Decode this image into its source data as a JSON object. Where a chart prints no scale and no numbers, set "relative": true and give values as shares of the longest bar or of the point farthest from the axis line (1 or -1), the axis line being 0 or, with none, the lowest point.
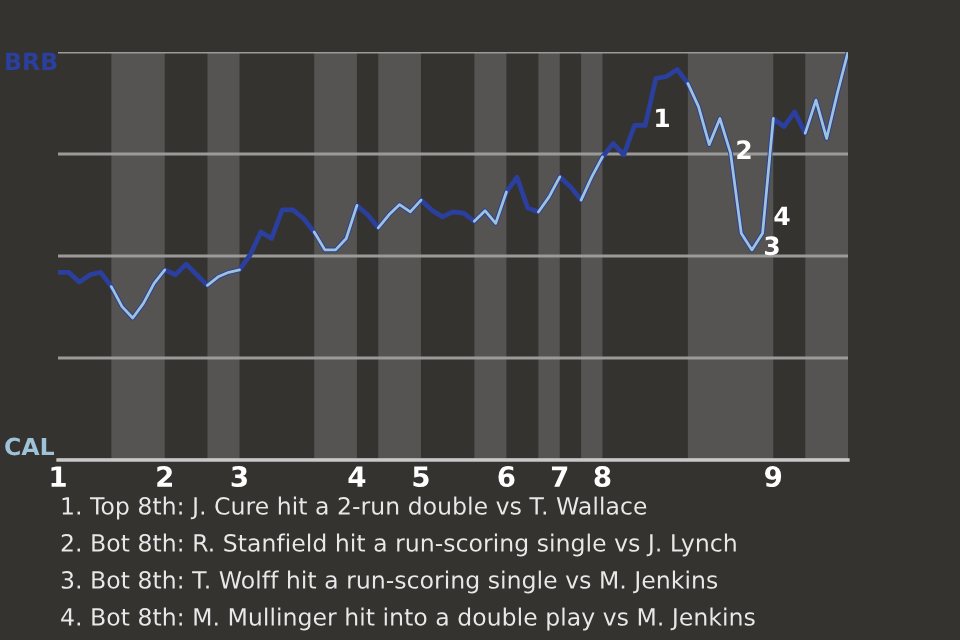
{
  "chart_data": {
    "type": "line",
    "relative": true,
    "grid": "y",
    "categories": [
      "1",
      null,
      null,
      null,
      null,
      null,
      null,
      null,
      null,
      null,
      "2",
      null,
      null,
      null,
      null,
      null,
      null,
      "3",
      null,
      null,
      null,
      null,
      null,
      null,
      null,
      null,
      null,
      null,
      "4",
      null,
      null,
      null,
      null,
      null,
      "5",
      null,
      null,
      null,
      null,
      null,
      null,
      null,
      "6",
      null,
      null,
      null,
      null,
      "7",
      null,
      null,
      null,
      "8",
      null,
      null,
      null,
      null,
      null,
      null,
      null,
      null,
      null,
      null,
      null,
      null,
      null,
      null,
      null,
      "9",
      null,
      null,
      null,
      null,
      null,
      null,
      null
    ],
    "series": [
      {
        "color": "#2b3f9e",
        "values": [
          0.46,
          0.46,
          0.436,
          0.454,
          0.46,
          0.425,
          0.376,
          0.348,
          0.384,
          0.433,
          0.466,
          0.454,
          0.48,
          0.454,
          0.428,
          0.449,
          0.46,
          0.466,
          0.503,
          0.559,
          0.543,
          0.613,
          0.613,
          0.592,
          0.559,
          0.515,
          0.515,
          0.543,
          0.624,
          0.601,
          0.569,
          0.601,
          0.626,
          0.608,
          0.637,
          0.613,
          0.596,
          0.608,
          0.605,
          0.585,
          0.611,
          0.58,
          0.657,
          0.693,
          0.618,
          0.608,
          0.645,
          0.694,
          0.67,
          0.637,
          0.694,
          0.743,
          0.776,
          0.748,
          0.82,
          0.82,
          0.935,
          0.94,
          0.957,
          0.923,
          0.866,
          0.773,
          0.837,
          0.752,
          0.556,
          0.515,
          0.556,
          0.837,
          0.817,
          0.853,
          0.801,
          0.882,
          0.788,
          0.899,
          1.0
        ],
        "colors": [
          "#2b3f9e",
          "#2b3f9e",
          "#2b3f9e",
          "#2b3f9e",
          "#2b3f9e",
          "#2b3f9e",
          "#9ec3d9",
          "#9ec3d9",
          "#9ec3d9",
          "#9ec3d9",
          "#9ec3d9",
          "#2b3f9e",
          "#2b3f9e",
          "#2b3f9e",
          "#2b3f9e",
          "#9ec3d9",
          "#9ec3d9",
          "#9ec3d9",
          "#2b3f9e",
          "#2b3f9e",
          "#2b3f9e",
          "#2b3f9e",
          "#2b3f9e",
          "#2b3f9e",
          "#2b3f9e",
          "#9ec3d9",
          "#9ec3d9",
          "#9ec3d9",
          "#9ec3d9",
          "#2b3f9e",
          "#2b3f9e",
          "#9ec3d9",
          "#9ec3d9",
          "#9ec3d9",
          "#9ec3d9",
          "#2b3f9e",
          "#2b3f9e",
          "#2b3f9e",
          "#2b3f9e",
          "#2b3f9e",
          "#9ec3d9",
          "#9ec3d9",
          "#9ec3d9",
          "#2b3f9e",
          "#2b3f9e",
          "#2b3f9e",
          "#9ec3d9",
          "#9ec3d9",
          "#2b3f9e",
          "#2b3f9e",
          "#9ec3d9",
          "#9ec3d9",
          "#2b3f9e",
          "#2b3f9e",
          "#2b3f9e",
          "#2b3f9e",
          "#2b3f9e",
          "#2b3f9e",
          "#2b3f9e",
          "#2b3f9e",
          "#9ec3d9",
          "#9ec3d9",
          "#9ec3d9",
          "#9ec3d9",
          "#9ec3d9",
          "#9ec3d9",
          "#9ec3d9",
          "#9ec3d9",
          "#2b3f9e",
          "#2b3f9e",
          "#2b3f9e",
          "#9ec3d9",
          "#9ec3d9",
          "#9ec3d9",
          "#9ec3d9"
        ]
      }
    ],
    "annotations": [
      {
        "text": "BRB"
      },
      {
        "text": "CAL"
      },
      "1",
      "2",
      "3",
      "4",
      "1. Top 8th: J. Cure hit a 2-run double vs T. Wallace",
      "2. Bot 8th: R. Stanfield hit a run-scoring single vs J. Lynch",
      "3. Bot 8th: T. Wolff hit a run-scoring single vs M. Jenkins",
      "4. Bot 8th: M. Mullinger hit into a double play vs M. Jenkins"
    ]
  }
}
